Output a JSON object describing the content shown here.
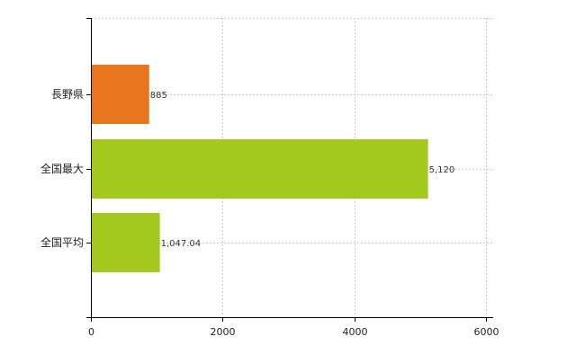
{
  "chart_data": {
    "type": "bar",
    "orientation": "horizontal",
    "title": "",
    "xlabel": "",
    "ylabel": "",
    "categories": [
      "長野県",
      "全国最大",
      "全国平均"
    ],
    "values": [
      885,
      5120,
      1047.04
    ],
    "value_labels": [
      "885",
      "5,120",
      "1,047.04"
    ],
    "bar_colors": [
      "#e8761e",
      "#a3c91e",
      "#a3c91e"
    ],
    "xlim": [
      0,
      6000
    ],
    "x_ticks": [
      0,
      2000,
      4000,
      6000
    ],
    "x_tick_labels": [
      "0",
      "2000",
      "4000",
      "6000"
    ],
    "grid": true,
    "legend": "none"
  }
}
